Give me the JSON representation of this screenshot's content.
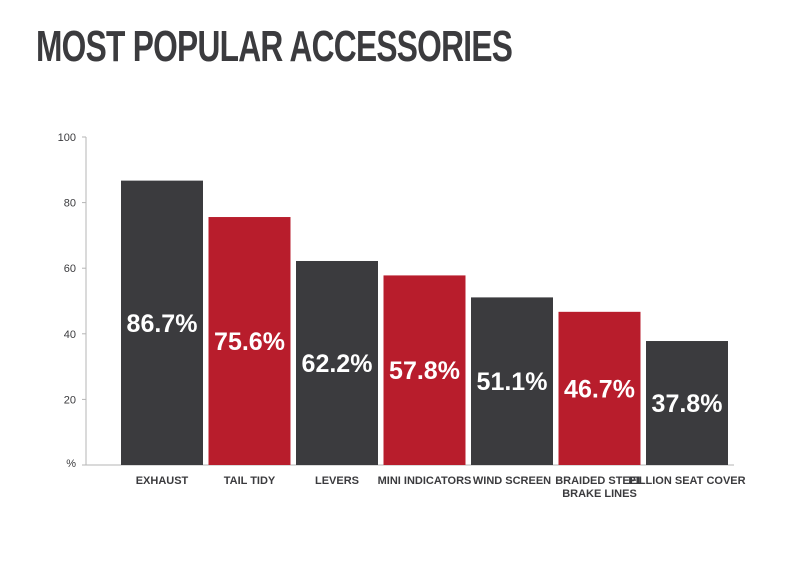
{
  "chart_data": {
    "type": "bar",
    "title": "MOST POPULAR ACCESSORIES",
    "ylabel": "%",
    "ylim": [
      0,
      100
    ],
    "yticks": [
      "%",
      "20",
      "40",
      "60",
      "80",
      "100"
    ],
    "grid": false,
    "categories": [
      [
        "EXHAUST"
      ],
      [
        "TAIL TIDY"
      ],
      [
        "LEVERS"
      ],
      [
        "MINI INDICATORS"
      ],
      [
        "WIND SCREEN"
      ],
      [
        "BRAIDED STEEL",
        "BRAKE LINES"
      ],
      [
        "PILLION SEAT COVER"
      ]
    ],
    "values": [
      86.7,
      75.6,
      62.2,
      57.8,
      51.1,
      46.7,
      37.8
    ],
    "data_labels": [
      "86.7%",
      "75.6%",
      "62.2%",
      "57.8%",
      "51.1%",
      "46.7%",
      "37.8%"
    ],
    "colors": [
      "#3b3b3e",
      "#b81d2c",
      "#3b3b3e",
      "#b81d2c",
      "#3b3b3e",
      "#b81d2c",
      "#3b3b3e"
    ]
  }
}
